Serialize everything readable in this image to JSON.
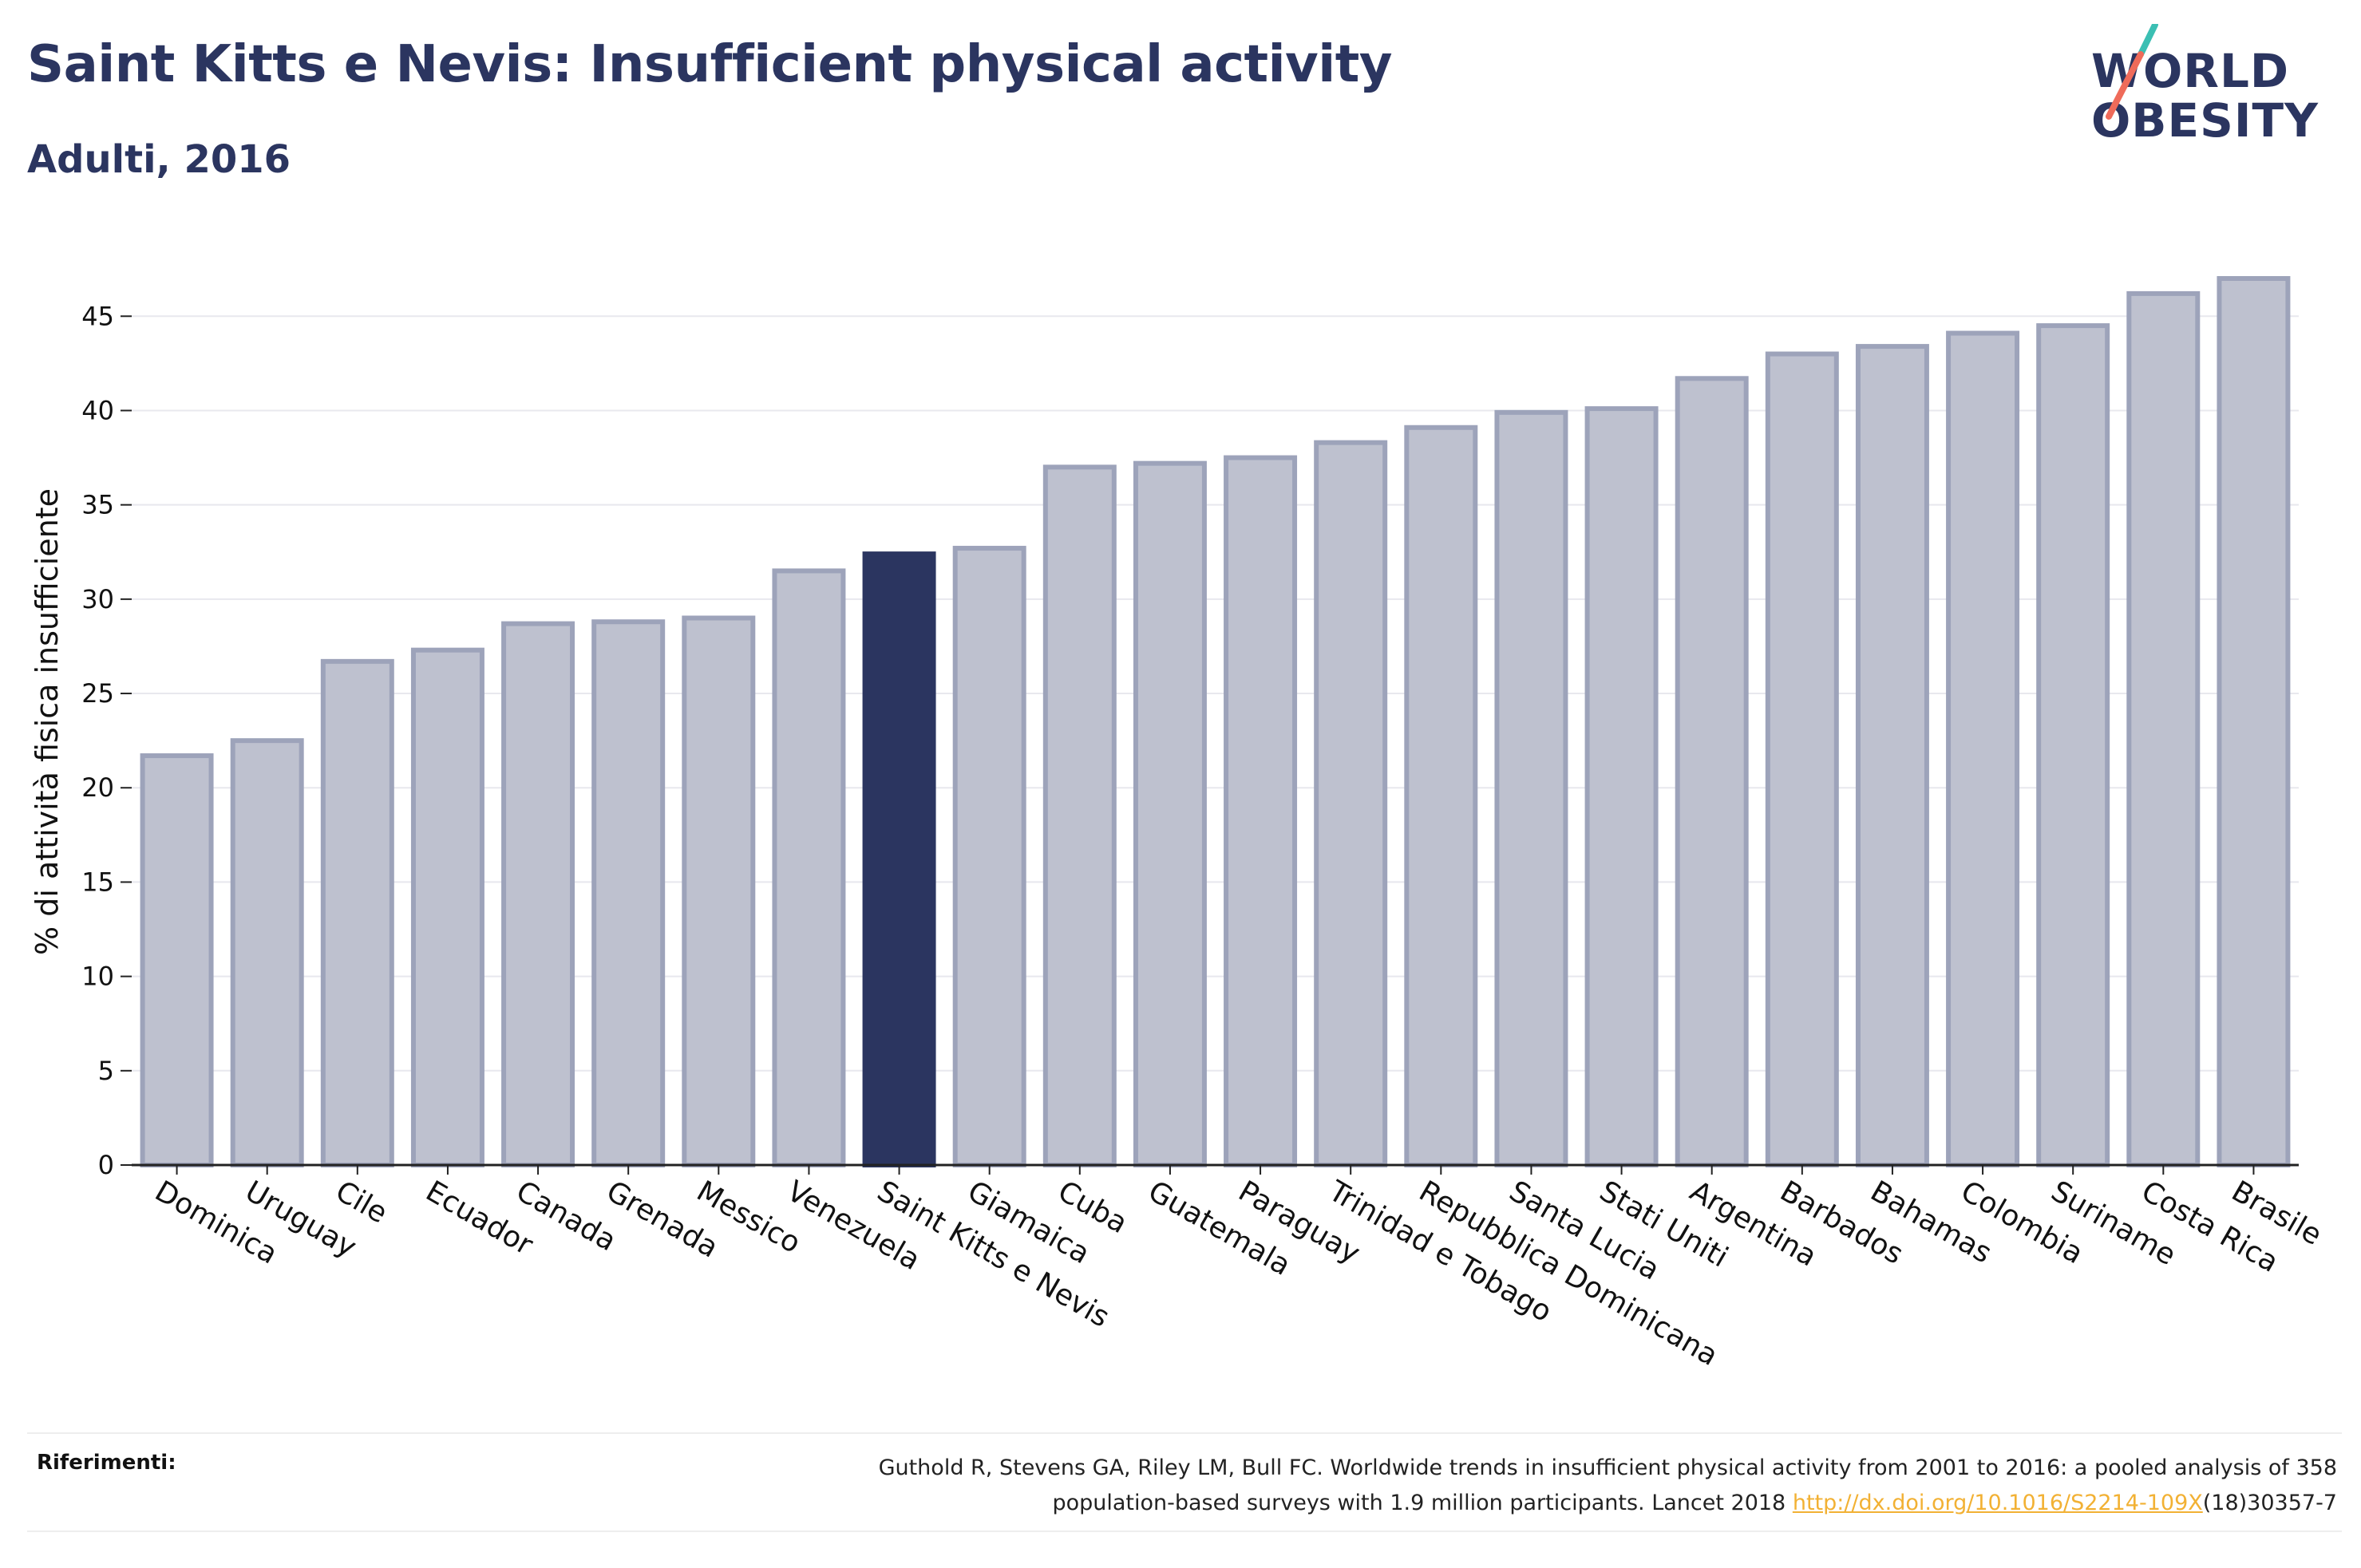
{
  "header": {
    "title": "Saint Kitts e Nevis: Insufficient physical activity",
    "subtitle": "Adulti, 2016"
  },
  "logo": {
    "line1": "WORLD",
    "line2": "OBESITY",
    "colors": {
      "text": "#2b3560",
      "slash_top": "#3bbfb3",
      "slash_bottom": "#ef6b5a"
    }
  },
  "chart_data": {
    "type": "bar",
    "ylabel": "% di attività fisica insufficiente",
    "xlabel": "",
    "ylim": [
      0,
      47
    ],
    "yticks": [
      0,
      5,
      10,
      15,
      20,
      25,
      30,
      35,
      40,
      45
    ],
    "grid": true,
    "highlight": "Saint Kitts e Nevis",
    "colors": {
      "bar": "#bec1cf",
      "bar_border": "#9da3ba",
      "highlight": "#2b3560",
      "grid": "#e8e8ee",
      "axis": "#222222"
    },
    "categories": [
      "Dominica",
      "Uruguay",
      "Cile",
      "Ecuador",
      "Canada",
      "Grenada",
      "Messico",
      "Venezuela",
      "Saint Kitts e Nevis",
      "Giamaica",
      "Cuba",
      "Guatemala",
      "Paraguay",
      "Trinidad e Tobago",
      "Repubblica Dominicana",
      "Santa Lucia",
      "Stati Uniti",
      "Argentina",
      "Barbados",
      "Bahamas",
      "Colombia",
      "Suriname",
      "Costa Rica",
      "Brasile"
    ],
    "values": [
      21.7,
      22.5,
      26.7,
      27.3,
      28.7,
      28.8,
      29.0,
      31.5,
      32.4,
      32.7,
      37.0,
      37.2,
      37.5,
      38.3,
      39.1,
      39.9,
      40.1,
      41.7,
      43.0,
      43.4,
      44.1,
      44.5,
      46.2,
      47.0
    ]
  },
  "footer": {
    "label": "Riferimenti:",
    "ref_part1": "Guthold R, Stevens GA, Riley LM, Bull FC. Worldwide trends in insufficient physical activity from 2001 to 2016: a pooled analysis of 358",
    "ref_part2": "population-based surveys with 1.9 million participants. Lancet 2018 ",
    "ref_link": "http://dx.doi.org/10.1016/S2214-109X",
    "ref_part3": "(18)30357-7",
    "link_color": "#f2b134"
  }
}
